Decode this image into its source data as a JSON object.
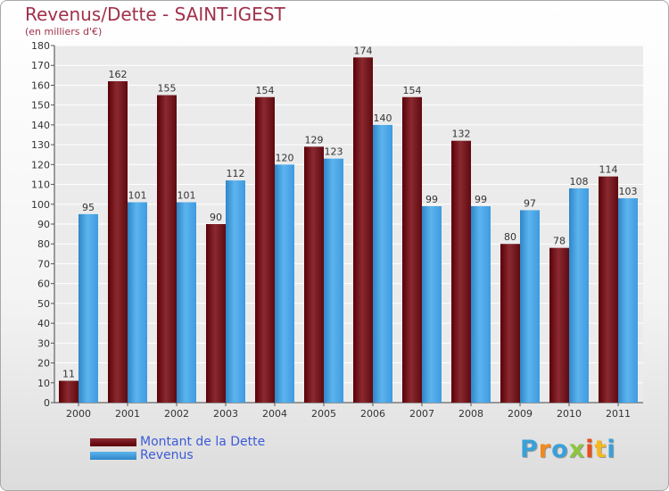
{
  "chart_data": {
    "type": "bar",
    "title": "Revenus/Dette - SAINT-IGEST",
    "subtitle": "(en milliers d'€)",
    "categories": [
      "2000",
      "2001",
      "2002",
      "2003",
      "2004",
      "2005",
      "2006",
      "2007",
      "2008",
      "2009",
      "2010",
      "2011"
    ],
    "series": [
      {
        "name": "Montant de la Dette",
        "color": "#7a0c14",
        "values": [
          11,
          162,
          155,
          90,
          154,
          129,
          174,
          154,
          132,
          80,
          78,
          114
        ]
      },
      {
        "name": "Revenus",
        "color": "#3f9fe0",
        "values": [
          95,
          101,
          101,
          112,
          120,
          123,
          140,
          99,
          99,
          97,
          108,
          103
        ]
      }
    ],
    "yticks": [
      0,
      10,
      20,
      30,
      40,
      50,
      60,
      70,
      80,
      90,
      100,
      110,
      120,
      130,
      140,
      150,
      160,
      170,
      180
    ],
    "ylim": [
      0,
      180
    ],
    "grid": true,
    "legend": "bottom-left"
  },
  "logo": {
    "letters": [
      {
        "ch": "P",
        "color": "#3aa0d8"
      },
      {
        "ch": "r",
        "color": "#f08a1c"
      },
      {
        "ch": "o",
        "color": "#3aa0d8"
      },
      {
        "ch": "x",
        "color": "#8cc63f"
      },
      {
        "ch": "i",
        "color": "#e94e1b"
      },
      {
        "ch": "t",
        "color": "#f6b81c"
      },
      {
        "ch": "i",
        "color": "#3aa0d8"
      }
    ]
  }
}
